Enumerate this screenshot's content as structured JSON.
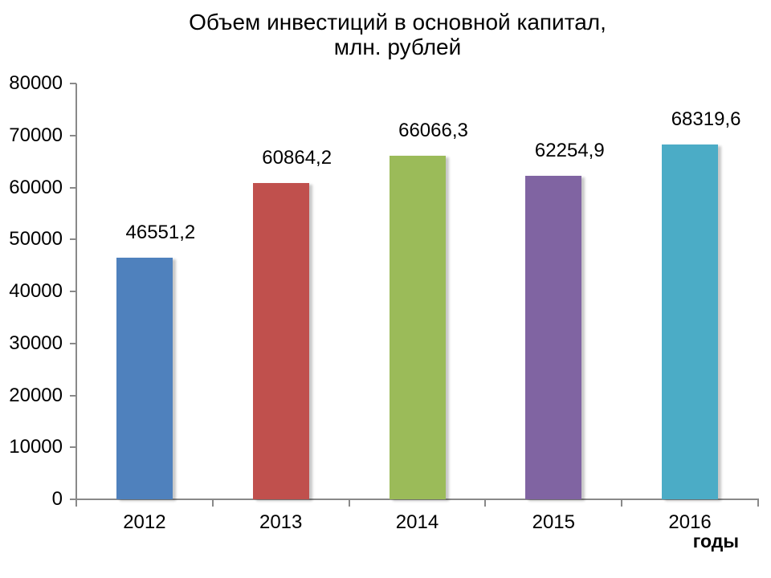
{
  "chart_data": {
    "type": "bar",
    "title_lines": [
      "Объем инвестиций в основной капитал,",
      "млн. рублей"
    ],
    "title": "Объем инвестиций в основной капитал, млн. рублей",
    "categories": [
      "2012",
      "2013",
      "2014",
      "2015",
      "2016"
    ],
    "values": [
      46551.2,
      60864.2,
      66066.3,
      62254.9,
      68319.6
    ],
    "value_labels": [
      "46551,2",
      "60864,2",
      "66066,3",
      "62254,9",
      "68319,6"
    ],
    "bar_colors": [
      "#4F81BD",
      "#C0504D",
      "#9BBB59",
      "#8064A2",
      "#4BACC6"
    ],
    "xlabel": "годы",
    "ylabel": "",
    "ylim": [
      0,
      80000
    ],
    "ytick_step": 10000,
    "yticks": [
      "0",
      "10000",
      "20000",
      "30000",
      "40000",
      "50000",
      "60000",
      "70000",
      "80000"
    ],
    "grid": false,
    "legend": "none",
    "axis_color": "#898989",
    "text_color": "#000000",
    "background": "#FFFFFF"
  }
}
